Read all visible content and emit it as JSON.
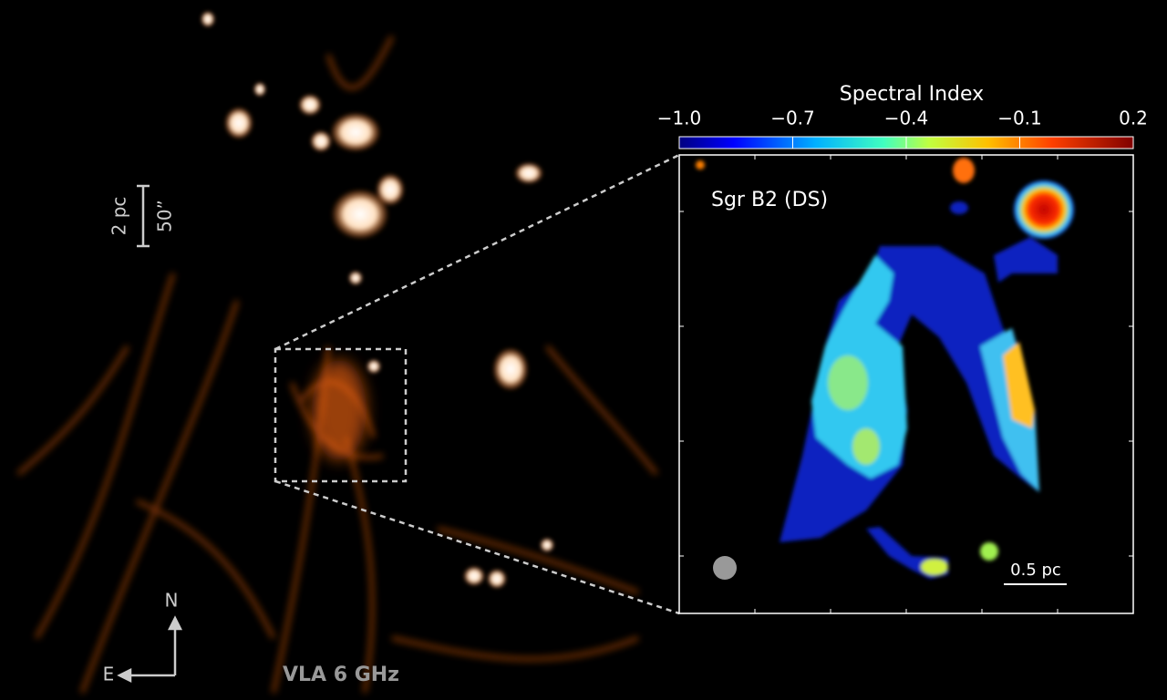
{
  "image": {
    "label": "VLA 6 GHz",
    "scale_bar": {
      "physical": "2 pc",
      "angular": "50”"
    },
    "compass": {
      "north": "N",
      "east": "E"
    }
  },
  "colorbar": {
    "title": "Spectral Index",
    "ticks": [
      "−1.0",
      "−0.7",
      "−0.4",
      "−0.1",
      "0.2"
    ]
  },
  "inset": {
    "label": "Sgr B2 (DS)",
    "scale_bar": "0.5 pc"
  }
}
